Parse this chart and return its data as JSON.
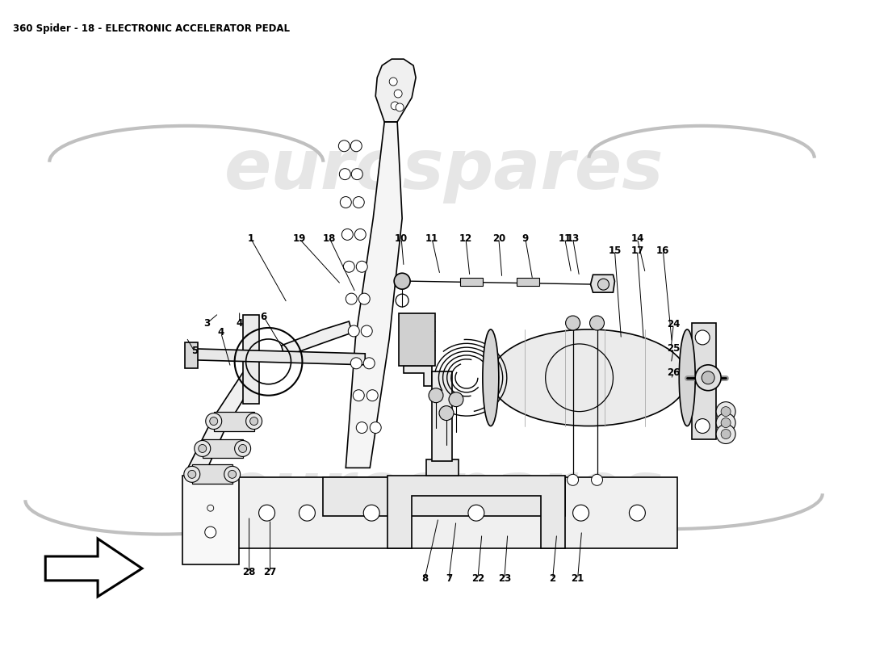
{
  "title": "360 Spider - 18 - ELECTRONIC ACCELERATOR PEDAL",
  "title_fontsize": 8.5,
  "bg_color": "#ffffff",
  "line_color": "#000000",
  "watermark_text": "eurospares",
  "watermark_color": "#c8c8c8",
  "watermark_alpha": 0.45,
  "fig_w": 11.0,
  "fig_h": 8.0,
  "dpi": 100,
  "annotations": [
    [
      "1",
      310,
      295,
      355,
      375
    ],
    [
      "19",
      370,
      295,
      422,
      352
    ],
    [
      "18",
      408,
      295,
      440,
      362
    ],
    [
      "10",
      497,
      295,
      500,
      330
    ],
    [
      "11",
      535,
      295,
      545,
      340
    ],
    [
      "12",
      577,
      295,
      582,
      342
    ],
    [
      "20",
      618,
      295,
      622,
      344
    ],
    [
      "9",
      651,
      295,
      660,
      346
    ],
    [
      "13",
      710,
      295,
      718,
      342
    ],
    [
      "11",
      700,
      295,
      708,
      338
    ],
    [
      "14",
      790,
      295,
      800,
      338
    ],
    [
      "15",
      762,
      310,
      770,
      420
    ],
    [
      "17",
      790,
      310,
      798,
      422
    ],
    [
      "16",
      822,
      310,
      833,
      424
    ],
    [
      "5",
      240,
      435,
      230,
      418
    ],
    [
      "4",
      273,
      412,
      285,
      455
    ],
    [
      "3",
      256,
      400,
      270,
      388
    ],
    [
      "4",
      296,
      400,
      296,
      385
    ],
    [
      "6",
      326,
      392,
      350,
      432
    ],
    [
      "28",
      308,
      710,
      308,
      640
    ],
    [
      "27",
      334,
      710,
      334,
      644
    ],
    [
      "8",
      526,
      718,
      543,
      642
    ],
    [
      "7",
      556,
      718,
      565,
      646
    ],
    [
      "22",
      592,
      718,
      597,
      662
    ],
    [
      "23",
      625,
      718,
      629,
      662
    ],
    [
      "2",
      685,
      718,
      690,
      662
    ],
    [
      "21",
      716,
      718,
      721,
      658
    ],
    [
      "24",
      835,
      402,
      832,
      430
    ],
    [
      "25",
      835,
      432,
      832,
      450
    ],
    [
      "26",
      835,
      462,
      832,
      470
    ]
  ]
}
